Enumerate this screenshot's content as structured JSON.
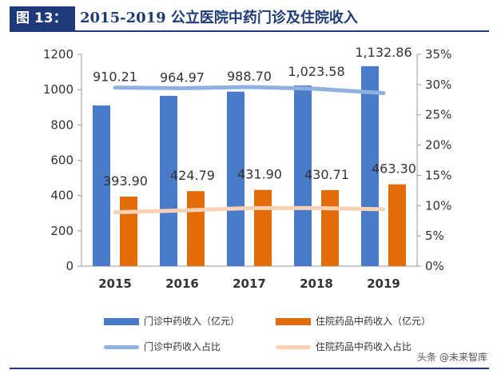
{
  "header": {
    "tag": "图 13：",
    "title": "2015-2019 公立医院中药门诊及住院收入"
  },
  "colors": {
    "outpatient_bar": "#4a7bc8",
    "inpatient_bar": "#e36c0a",
    "outpatient_line": "#8fb0e2",
    "inpatient_line": "#f9d1b4",
    "brand": "#1f3a78"
  },
  "legend": {
    "items": [
      {
        "label": "门诊中药收入（亿元）",
        "type": "bar",
        "color": "#4a7bc8"
      },
      {
        "label": "住院药品中药收入（亿元）",
        "type": "bar",
        "color": "#e36c0a"
      },
      {
        "label": "门诊中药收入占比",
        "type": "line",
        "color": "#8fb0e2"
      },
      {
        "label": "住院药品中药收入占比",
        "type": "line",
        "color": "#f9d1b4"
      }
    ]
  },
  "watermark": "头条 @未来智库",
  "chart_data": {
    "type": "bar",
    "categories": [
      "2015",
      "2016",
      "2017",
      "2018",
      "2019"
    ],
    "series": [
      {
        "name": "门诊中药收入（亿元）",
        "type": "bar",
        "axis": "left",
        "values": [
          910.21,
          964.97,
          988.7,
          1023.58,
          1132.86
        ],
        "labels": [
          "910.21",
          "964.97",
          "988.70",
          "1,023.58",
          "1,132.86"
        ]
      },
      {
        "name": "住院药品中药收入（亿元）",
        "type": "bar",
        "axis": "left",
        "values": [
          393.9,
          424.79,
          431.9,
          430.71,
          463.3
        ],
        "labels": [
          "393.90",
          "424.79",
          "431.90",
          "430.71",
          "463.30"
        ]
      },
      {
        "name": "门诊中药收入占比",
        "type": "line",
        "axis": "right",
        "values": [
          29.5,
          29.4,
          29.6,
          29.3,
          28.6
        ]
      },
      {
        "name": "住院药品中药收入占比",
        "type": "line",
        "axis": "right",
        "values": [
          8.9,
          9.2,
          9.6,
          9.6,
          9.4
        ]
      }
    ],
    "y_left": {
      "range": [
        0,
        1200
      ],
      "ticks": [
        "0",
        "200",
        "400",
        "600",
        "800",
        "1000",
        "1200"
      ]
    },
    "y_right": {
      "range": [
        0,
        35
      ],
      "ticks": [
        "0%",
        "5%",
        "10%",
        "15%",
        "20%",
        "25%",
        "30%",
        "35%"
      ]
    },
    "grid": false,
    "legend_position": "bottom"
  }
}
